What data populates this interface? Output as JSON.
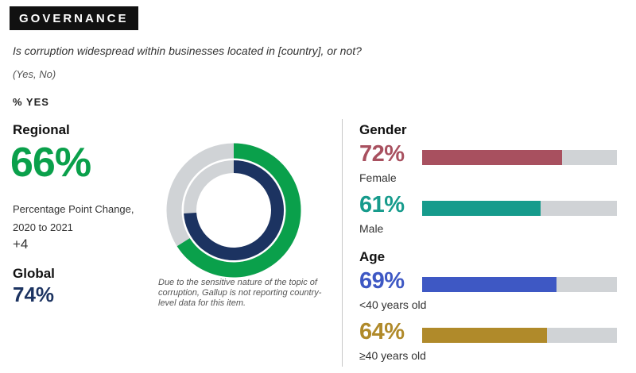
{
  "header": {
    "badge": "GOVERNANCE",
    "question": "Is corruption widespread within businesses located in [country], or not?",
    "options": "(Yes, No)",
    "metric": "% YES"
  },
  "regional": {
    "label": "Regional",
    "value": "66%",
    "change_label": "Percentage Point Change, 2020 to 2021",
    "change_value": "+4"
  },
  "global": {
    "label": "Global",
    "value": "74%"
  },
  "note": "Due to the sensitive nature of the topic of corruption, Gallup is not reporting country-level data for this item.",
  "colors": {
    "regional": "#0aa04b",
    "global": "#1c3361",
    "track": "#d0d3d6",
    "female": "#a8505f",
    "male": "#169b8c",
    "under40": "#3e58c4",
    "over40": "#b08a2a"
  },
  "gender": {
    "title": "Gender",
    "female": {
      "value": "72%",
      "label": "Female"
    },
    "male": {
      "value": "61%",
      "label": "Male"
    }
  },
  "age": {
    "title": "Age",
    "under40": {
      "value": "69%",
      "label": "<40 years old"
    },
    "over40": {
      "value": "64%",
      "label": "≥40 years old"
    }
  },
  "chart_data": [
    {
      "type": "pie",
      "series": [
        {
          "name": "Regional",
          "values": [
            66
          ]
        },
        {
          "name": "Global",
          "values": [
            74
          ]
        }
      ],
      "ylim": [
        0,
        100
      ]
    },
    {
      "type": "bar",
      "title": "Gender",
      "categories": [
        "Female",
        "Male"
      ],
      "values": [
        72,
        61
      ],
      "ylim": [
        0,
        100
      ]
    },
    {
      "type": "bar",
      "title": "Age",
      "categories": [
        "<40 years old",
        "≥40 years old"
      ],
      "values": [
        69,
        64
      ],
      "ylim": [
        0,
        100
      ]
    }
  ]
}
